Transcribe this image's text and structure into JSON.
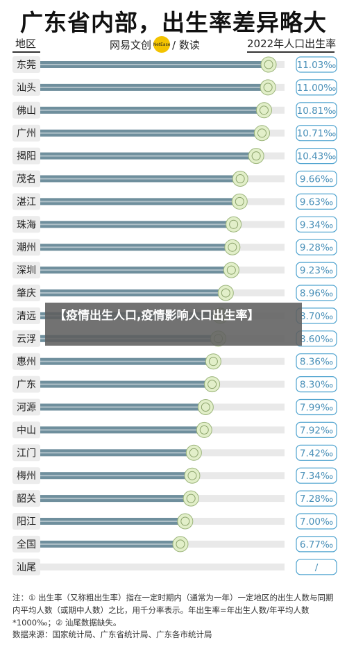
{
  "chart_data": {
    "type": "bar",
    "title": "广东省内部，出生率差异略大",
    "category_header": "地区",
    "value_header": "2022年人口出生率",
    "categories": [
      "东莞",
      "汕头",
      "佛山",
      "广州",
      "揭阳",
      "茂名",
      "湛江",
      "珠海",
      "潮州",
      "深圳",
      "肇庆",
      "清远",
      "云浮",
      "惠州",
      "广东",
      "河源",
      "中山",
      "江门",
      "梅州",
      "韶关",
      "阳江",
      "全国",
      "汕尾"
    ],
    "values": [
      11.03,
      11.0,
      10.81,
      10.71,
      10.43,
      9.66,
      9.63,
      9.34,
      9.28,
      9.23,
      8.96,
      8.7,
      8.6,
      8.36,
      8.3,
      7.99,
      7.92,
      7.42,
      7.34,
      7.28,
      7.0,
      6.77,
      null
    ],
    "labels": [
      "11.03‰",
      "11.00‰",
      "10.81‰",
      "10.71‰",
      "10.43‰",
      "9.66‰",
      "9.63‰",
      "9.34‰",
      "9.28‰",
      "9.23‰",
      "8.96‰",
      "8.70‰",
      "8.60‰",
      "8.36‰",
      "8.30‰",
      "7.99‰",
      "7.92‰",
      "7.42‰",
      "7.34‰",
      "7.28‰",
      "7.00‰",
      "6.77‰",
      "/"
    ],
    "xlim": [
      0,
      11.8
    ],
    "grid": false
  },
  "brand": {
    "name": "网易文创",
    "badge": "NetEase",
    "sub": "/ 数读"
  },
  "note": "注：① 出生率（又称粗出生率）指在一定时期内（通常为一年）一定地区的出生人数与同期内平均人数（或期中人数）之比，用千分率表示。年出生率=年出生人数/年平均人数*1000‰；② 汕尾数据缺失。",
  "source": "数据来源：国家统计局、广东省统计局、广东各市统计局",
  "overlay": "【疫情出生人口,疫情影响人口出生率】",
  "colors": {
    "bar": "#6f8f9d",
    "track": "#e9e9e9",
    "accent": "#4fa3cf",
    "label_bg": "#ececec",
    "marker": "#e2efc9"
  }
}
